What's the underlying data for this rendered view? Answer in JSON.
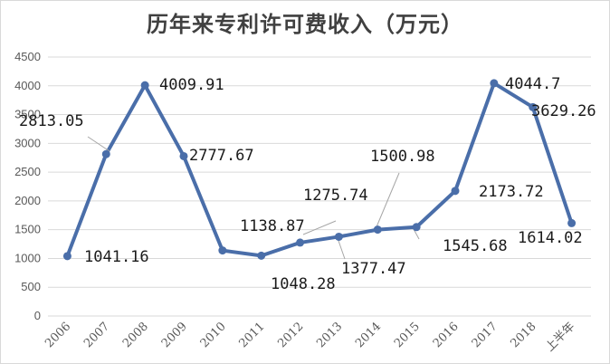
{
  "chart_data": {
    "type": "line",
    "title": "历年来专利许可费收入（万元）",
    "categories": [
      "2006",
      "2007",
      "2008",
      "2009",
      "2010",
      "2011",
      "2012",
      "2013",
      "2014",
      "2015",
      "2016",
      "2017",
      "2018",
      "上半年"
    ],
    "series": [
      {
        "values": [
          1041.16,
          2813.05,
          4009.91,
          2777.67,
          1138.87,
          1048.28,
          1275.74,
          1377.47,
          1500.98,
          1545.68,
          2173.72,
          4044.7,
          3629.26,
          1614.02
        ],
        "labels": [
          "1041.16",
          "2813.05",
          "4009.91",
          "2777.67",
          "1138.87",
          "1048.28",
          "1275.74",
          "1377.47",
          "1500.98",
          "1545.68",
          "2173.72",
          "4044.7",
          "3629.26",
          "1614.02"
        ]
      }
    ],
    "ylim": [
      0,
      4500
    ],
    "yticks": [
      0,
      500,
      1000,
      1500,
      2000,
      2500,
      3000,
      3500,
      4000,
      4500
    ],
    "grid": true,
    "legend": "none",
    "colors": {
      "line": "#4a6ea9",
      "marker": "#4a6ea9",
      "grid": "#d9d9d9",
      "leader": "#a6a6a6"
    }
  }
}
